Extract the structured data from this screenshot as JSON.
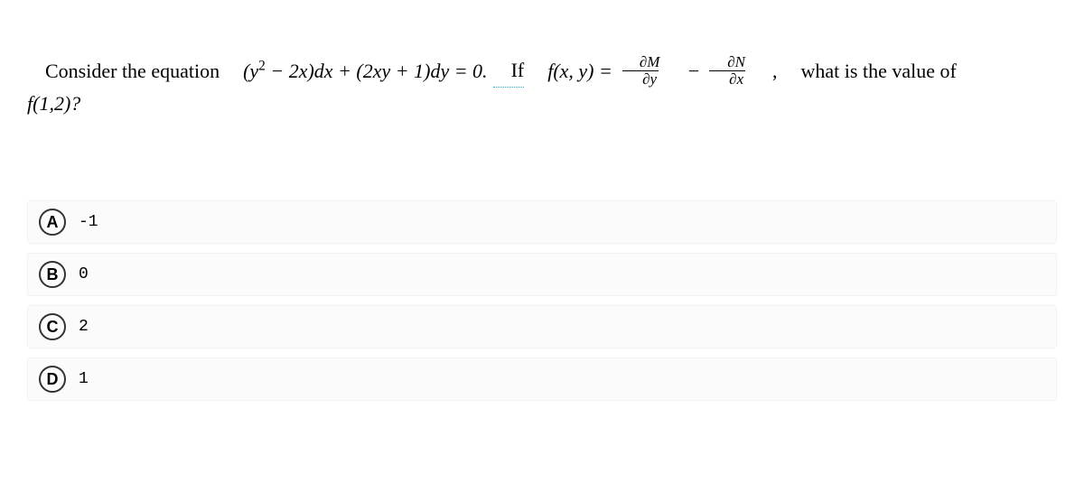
{
  "question": {
    "part1": "Consider the equation ",
    "eq1_lhs_a": "(y",
    "eq1_exp": "2",
    "eq1_lhs_b": " − 2x)dx + (2xy + 1)dy = 0. ",
    "if_text": "If",
    "fn_name": " f(x, y) = ",
    "frac1_num": "∂M",
    "frac1_den": "∂y",
    "minus": " − ",
    "frac2_num": "∂N",
    "frac2_den": "∂x",
    "comma": ",",
    "part2": " what is the value of",
    "line2": "f(1,2)?"
  },
  "options": [
    {
      "key": "A",
      "text": "-1"
    },
    {
      "key": "B",
      "text": "0"
    },
    {
      "key": "C",
      "text": "2"
    },
    {
      "key": "D",
      "text": "1"
    }
  ],
  "styles": {
    "background_color": "#ffffff",
    "text_color": "#000000",
    "option_bg": "#fbfbfb",
    "option_border": "#f2f2f2",
    "question_fontsize": 22,
    "option_fontsize": 18,
    "circle_border": "#333333"
  }
}
